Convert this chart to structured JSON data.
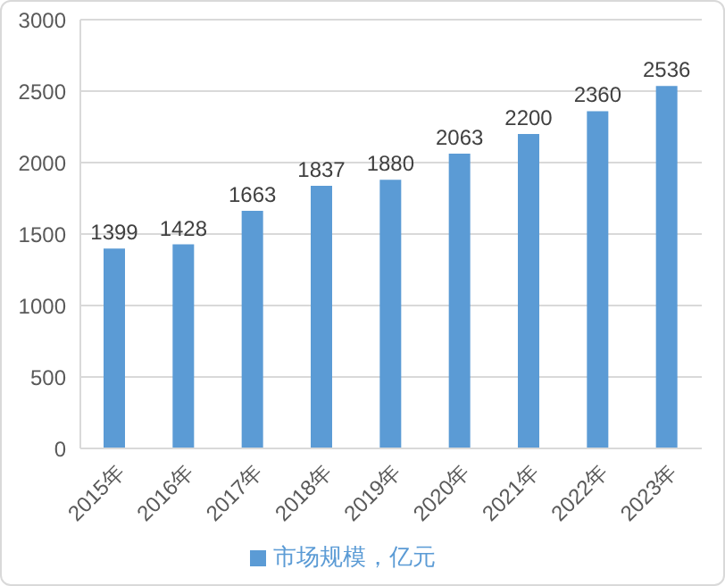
{
  "chart_data": {
    "type": "bar",
    "categories": [
      "2015年",
      "2016年",
      "2017年",
      "2018年",
      "2019年",
      "2020年",
      "2021年",
      "2022年",
      "2023年"
    ],
    "series": [
      {
        "name": "市场规模，亿元",
        "color": "#5b9bd5",
        "values": [
          1399,
          1428,
          1663,
          1837,
          1880,
          2063,
          2200,
          2360,
          2536
        ]
      }
    ],
    "ylim": [
      0,
      3000
    ],
    "yticks": [
      0,
      500,
      1000,
      1500,
      2000,
      2500,
      3000
    ],
    "grid": "y",
    "legend": "bottom",
    "data_labels": true
  }
}
